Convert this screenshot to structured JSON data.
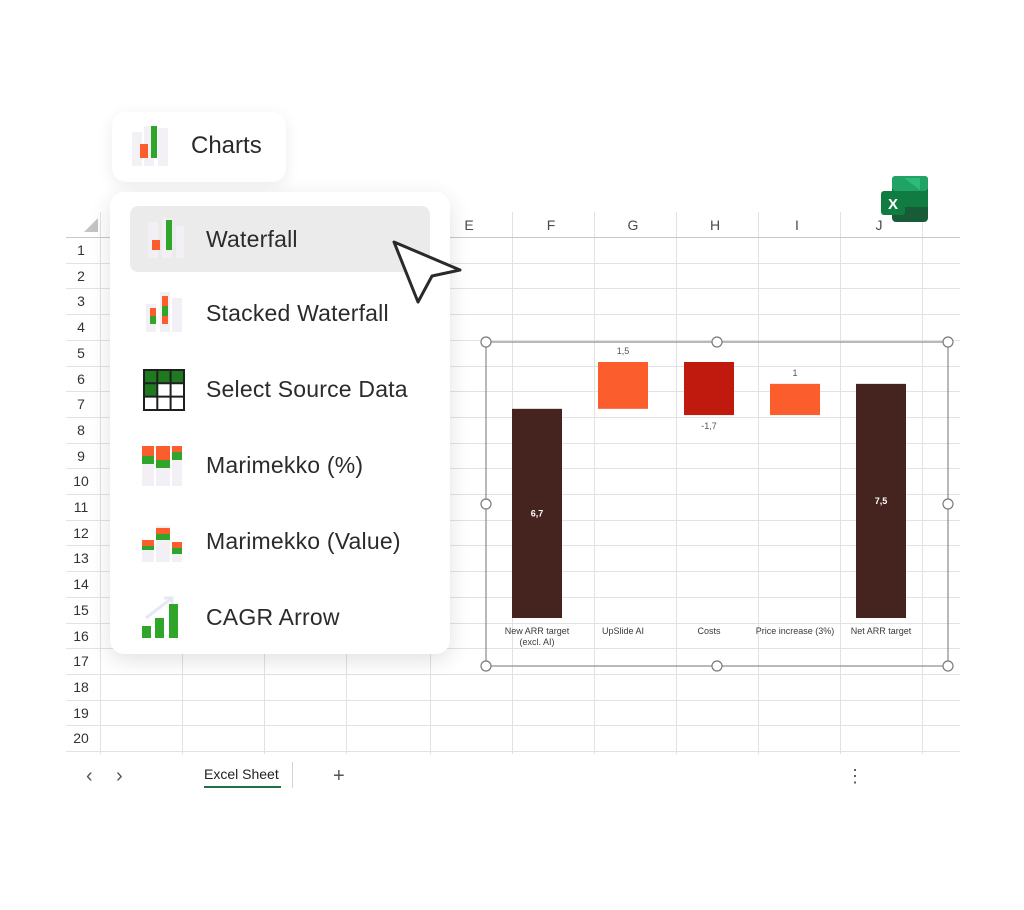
{
  "header": {
    "title": "Charts",
    "icon": "chart-bars-icon"
  },
  "menu": {
    "items": [
      {
        "label": "Waterfall",
        "icon": "waterfall-icon",
        "selected": true
      },
      {
        "label": "Stacked Waterfall",
        "icon": "stacked-waterfall-icon",
        "selected": false
      },
      {
        "label": "Select Source Data",
        "icon": "grid-table-icon",
        "selected": false
      },
      {
        "label": "Marimekko (%)",
        "icon": "marimekko-percent-icon",
        "selected": false
      },
      {
        "label": "Marimekko (Value)",
        "icon": "marimekko-value-icon",
        "selected": false
      },
      {
        "label": "CAGR Arrow",
        "icon": "cagr-arrow-icon",
        "selected": false
      }
    ]
  },
  "sheet": {
    "columns": [
      "E",
      "F",
      "G",
      "H",
      "I",
      "J"
    ],
    "rows": [
      "1",
      "2",
      "3",
      "4",
      "5",
      "6",
      "7",
      "8",
      "9",
      "10",
      "11",
      "12",
      "13",
      "14",
      "15",
      "16",
      "17",
      "18",
      "19",
      "20"
    ]
  },
  "footer": {
    "tab_label": "Excel Sheet",
    "prev": "‹",
    "next": "›",
    "add": "+",
    "more": "⋮"
  },
  "colors": {
    "dark_brown": "#45241f",
    "orange": "#fb5e2c",
    "red": "#c0190e",
    "excel_green": "#1e7145"
  },
  "chart_data": {
    "type": "bar",
    "subtype": "waterfall",
    "categories": [
      "New ARR target\n(excl. AI)",
      "UpSlide AI",
      "Costs",
      "Price increase (3%)",
      "Net ARR target"
    ],
    "values": [
      6.7,
      1.5,
      -1.7,
      1,
      7.5
    ],
    "value_labels": [
      "6,7",
      "1,5",
      "-1,7",
      "1",
      "7,5"
    ],
    "kinds": [
      "total",
      "increase",
      "decrease",
      "increase",
      "total"
    ],
    "ylim": [
      0,
      8.2
    ]
  }
}
